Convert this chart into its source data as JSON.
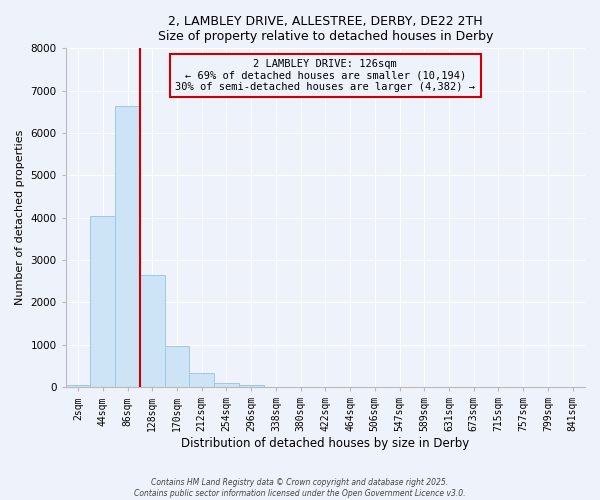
{
  "title": "2, LAMBLEY DRIVE, ALLESTREE, DERBY, DE22 2TH",
  "subtitle": "Size of property relative to detached houses in Derby",
  "xlabel": "Distribution of detached houses by size in Derby",
  "ylabel": "Number of detached properties",
  "bar_labels": [
    "2sqm",
    "44sqm",
    "86sqm",
    "128sqm",
    "170sqm",
    "212sqm",
    "254sqm",
    "296sqm",
    "338sqm",
    "380sqm",
    "422sqm",
    "464sqm",
    "506sqm",
    "547sqm",
    "589sqm",
    "631sqm",
    "673sqm",
    "715sqm",
    "757sqm",
    "799sqm",
    "841sqm"
  ],
  "bar_values": [
    50,
    4050,
    6650,
    2650,
    975,
    325,
    100,
    60,
    0,
    0,
    0,
    0,
    0,
    0,
    0,
    0,
    0,
    0,
    0,
    0,
    0
  ],
  "bar_color": "#cce4f5",
  "bar_edge_color": "#9dc8e8",
  "vline_color": "#cc0000",
  "annotation_title": "2 LAMBLEY DRIVE: 126sqm",
  "annotation_line1": "← 69% of detached houses are smaller (10,194)",
  "annotation_line2": "30% of semi-detached houses are larger (4,382) →",
  "annotation_box_color": "#cc0000",
  "ylim": [
    0,
    8000
  ],
  "yticks": [
    0,
    1000,
    2000,
    3000,
    4000,
    5000,
    6000,
    7000,
    8000
  ],
  "background_color": "#eef2fa",
  "footer_line1": "Contains HM Land Registry data © Crown copyright and database right 2025.",
  "footer_line2": "Contains public sector information licensed under the Open Government Licence v3.0."
}
